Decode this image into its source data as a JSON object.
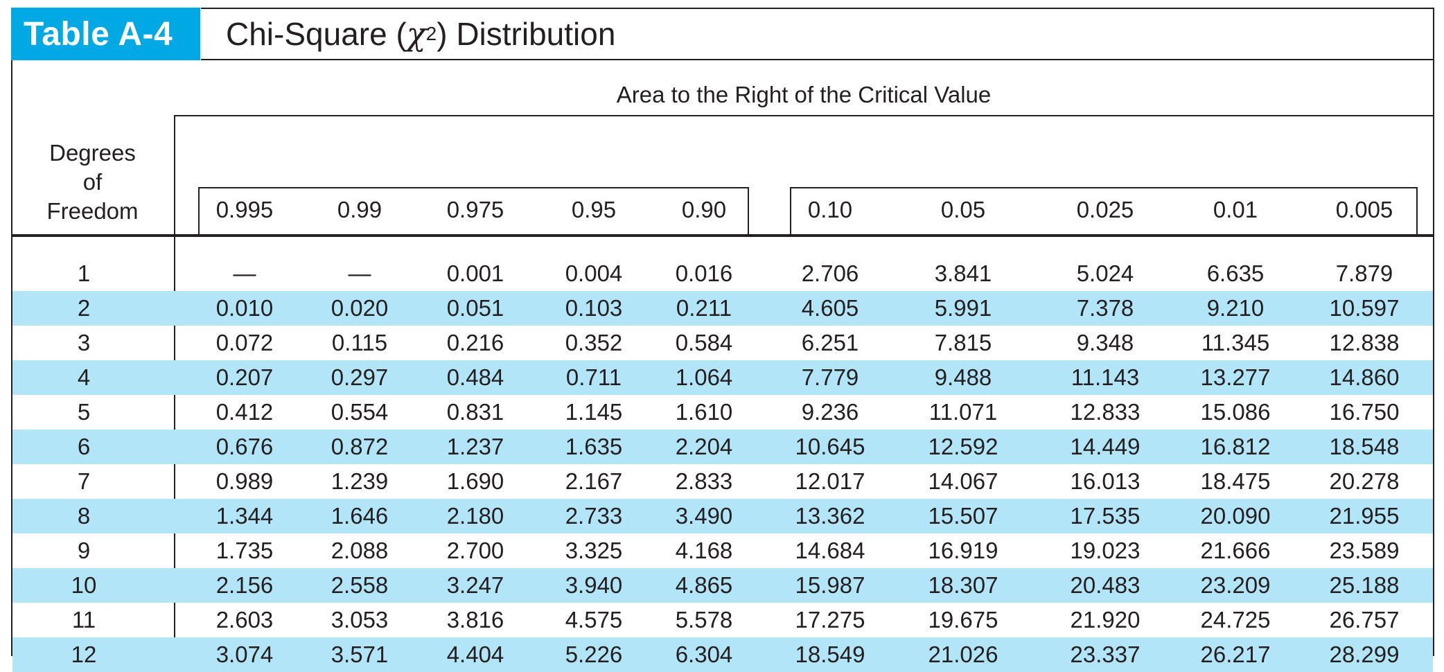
{
  "header": {
    "tag": "Table A-4",
    "title_prefix": "Chi-Square (",
    "title_symbol": "χ",
    "title_sup": "2",
    "title_suffix": ") Distribution"
  },
  "table": {
    "area_label": "Area to the Right of the Critical Value",
    "df_header_lines": [
      "Degrees",
      "of",
      "Freedom"
    ],
    "left_columns": [
      "0.995",
      "0.99",
      "0.975",
      "0.95",
      "0.90"
    ],
    "right_columns": [
      "0.10",
      "0.05",
      "0.025",
      "0.01",
      "0.005"
    ],
    "rows": [
      {
        "df": "1",
        "values": [
          "—",
          "—",
          "0.001",
          "0.004",
          "0.016",
          "2.706",
          "3.841",
          "5.024",
          "6.635",
          "7.879"
        ]
      },
      {
        "df": "2",
        "values": [
          "0.010",
          "0.020",
          "0.051",
          "0.103",
          "0.211",
          "4.605",
          "5.991",
          "7.378",
          "9.210",
          "10.597"
        ]
      },
      {
        "df": "3",
        "values": [
          "0.072",
          "0.115",
          "0.216",
          "0.352",
          "0.584",
          "6.251",
          "7.815",
          "9.348",
          "11.345",
          "12.838"
        ]
      },
      {
        "df": "4",
        "values": [
          "0.207",
          "0.297",
          "0.484",
          "0.711",
          "1.064",
          "7.779",
          "9.488",
          "11.143",
          "13.277",
          "14.860"
        ]
      },
      {
        "df": "5",
        "values": [
          "0.412",
          "0.554",
          "0.831",
          "1.145",
          "1.610",
          "9.236",
          "11.071",
          "12.833",
          "15.086",
          "16.750"
        ]
      },
      {
        "df": "6",
        "values": [
          "0.676",
          "0.872",
          "1.237",
          "1.635",
          "2.204",
          "10.645",
          "12.592",
          "14.449",
          "16.812",
          "18.548"
        ]
      },
      {
        "df": "7",
        "values": [
          "0.989",
          "1.239",
          "1.690",
          "2.167",
          "2.833",
          "12.017",
          "14.067",
          "16.013",
          "18.475",
          "20.278"
        ]
      },
      {
        "df": "8",
        "values": [
          "1.344",
          "1.646",
          "2.180",
          "2.733",
          "3.490",
          "13.362",
          "15.507",
          "17.535",
          "20.090",
          "21.955"
        ]
      },
      {
        "df": "9",
        "values": [
          "1.735",
          "2.088",
          "2.700",
          "3.325",
          "4.168",
          "14.684",
          "16.919",
          "19.023",
          "21.666",
          "23.589"
        ]
      },
      {
        "df": "10",
        "values": [
          "2.156",
          "2.558",
          "3.247",
          "3.940",
          "4.865",
          "15.987",
          "18.307",
          "20.483",
          "23.209",
          "25.188"
        ]
      },
      {
        "df": "11",
        "values": [
          "2.603",
          "3.053",
          "3.816",
          "4.575",
          "5.578",
          "17.275",
          "19.675",
          "21.920",
          "24.725",
          "26.757"
        ]
      },
      {
        "df": "12",
        "values": [
          "3.074",
          "3.571",
          "4.404",
          "5.226",
          "6.304",
          "18.549",
          "21.026",
          "23.337",
          "26.217",
          "28.299"
        ]
      }
    ]
  },
  "colors": {
    "accent": "#00a9e4",
    "row_shade": "#b3e5f8",
    "text": "#231f20"
  }
}
